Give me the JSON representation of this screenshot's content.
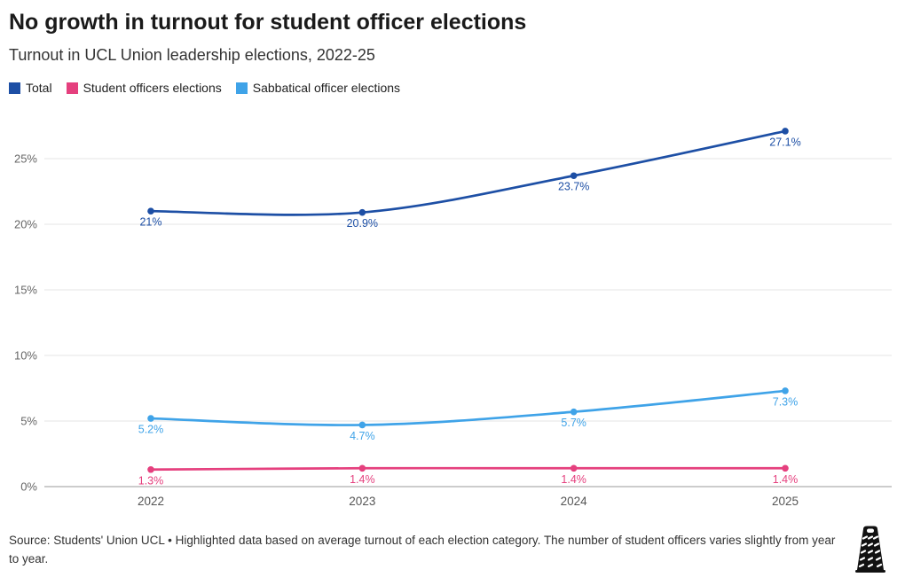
{
  "header": {
    "title": "No growth in turnout for student officer elections",
    "subtitle": "Turnout in UCL Union leadership elections, 2022-25"
  },
  "legend": [
    {
      "label": "Total",
      "color": "#1d4fa5"
    },
    {
      "label": "Student officers elections",
      "color": "#e5407e"
    },
    {
      "label": "Sabbatical officer elections",
      "color": "#3fa3e8"
    }
  ],
  "chart_data": {
    "type": "line",
    "x": [
      "2022",
      "2023",
      "2024",
      "2025"
    ],
    "series": [
      {
        "name": "Total",
        "color": "#1d4fa5",
        "values": [
          21,
          20.9,
          23.7,
          27.1
        ],
        "labels": [
          "21%",
          "20.9%",
          "23.7%",
          "27.1%"
        ]
      },
      {
        "name": "Sabbatical officer elections",
        "color": "#3fa3e8",
        "values": [
          5.2,
          4.7,
          5.7,
          7.3
        ],
        "labels": [
          "5.2%",
          "4.7%",
          "5.7%",
          "7.3%"
        ]
      },
      {
        "name": "Student officers elections",
        "color": "#e5407e",
        "values": [
          1.3,
          1.4,
          1.4,
          1.4
        ],
        "labels": [
          "1.3%",
          "1.4%",
          "1.4%",
          "1.4%"
        ]
      }
    ],
    "ylabel": "",
    "xlabel": "",
    "y_unit": "%",
    "yticks": [
      0,
      5,
      10,
      15,
      20,
      25
    ],
    "ytick_labels": [
      "0%",
      "5%",
      "10%",
      "15%",
      "20%",
      "25%"
    ],
    "ylim": [
      0,
      28.5
    ],
    "grid": true,
    "legend_position": "top-left",
    "colors": {
      "grid": "#e6e6e6",
      "zero_line": "#999999",
      "axis_text": "#666666"
    }
  },
  "footer": {
    "source": "Source: Students' Union UCL • Highlighted data based on average turnout of each election category. The number of student officers varies slightly from year to year.",
    "logo_icon": "cheese-grater-icon"
  }
}
